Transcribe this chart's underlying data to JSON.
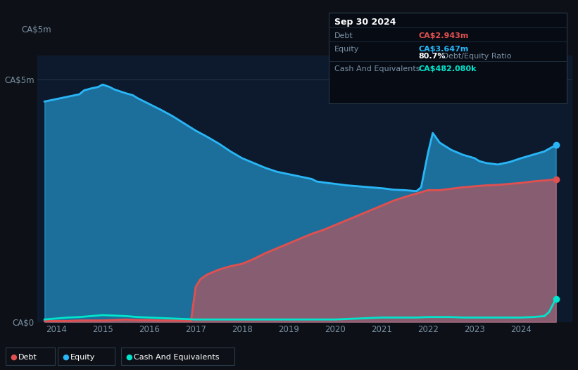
{
  "bg_color": "#0d1117",
  "plot_bg_color": "#0d1a2e",
  "title": "Sep 30 2024",
  "ylabel": "CA$5m",
  "y0_label": "CA$0",
  "debt_label": "CA$2.943m",
  "equity_label": "CA$3.647m",
  "ratio_label": "80.7%",
  "ratio_suffix": " Debt/Equity Ratio",
  "cash_label": "CA$482.080k",
  "debt_color": "#e05050",
  "equity_color": "#29b6f6",
  "cash_color": "#00e5cc",
  "ylim": [
    0,
    5.5
  ],
  "xlim_start": 2013.6,
  "xlim_end": 2025.1,
  "xticks": [
    2014,
    2015,
    2016,
    2017,
    2018,
    2019,
    2020,
    2021,
    2022,
    2023,
    2024
  ],
  "yticks_labels": [
    "CA$0",
    "CA$5m"
  ],
  "yticks_vals": [
    0,
    5
  ],
  "equity_x": [
    2013.75,
    2014.0,
    2014.25,
    2014.5,
    2014.6,
    2014.75,
    2014.9,
    2015.0,
    2015.15,
    2015.25,
    2015.5,
    2015.65,
    2015.75,
    2016.0,
    2016.25,
    2016.5,
    2016.75,
    2017.0,
    2017.25,
    2017.5,
    2017.75,
    2018.0,
    2018.25,
    2018.5,
    2018.75,
    2019.0,
    2019.25,
    2019.5,
    2019.6,
    2019.75,
    2020.0,
    2020.25,
    2020.5,
    2020.75,
    2021.0,
    2021.1,
    2021.25,
    2021.5,
    2021.75,
    2021.85,
    2022.0,
    2022.1,
    2022.25,
    2022.5,
    2022.75,
    2023.0,
    2023.1,
    2023.25,
    2023.5,
    2023.75,
    2024.0,
    2024.25,
    2024.5,
    2024.65,
    2024.75
  ],
  "equity_y": [
    4.55,
    4.6,
    4.65,
    4.7,
    4.78,
    4.82,
    4.85,
    4.9,
    4.85,
    4.8,
    4.72,
    4.68,
    4.62,
    4.5,
    4.38,
    4.25,
    4.1,
    3.95,
    3.82,
    3.68,
    3.52,
    3.38,
    3.28,
    3.18,
    3.1,
    3.05,
    3.0,
    2.95,
    2.9,
    2.88,
    2.85,
    2.82,
    2.8,
    2.78,
    2.76,
    2.75,
    2.73,
    2.72,
    2.7,
    2.78,
    3.5,
    3.9,
    3.7,
    3.55,
    3.45,
    3.38,
    3.32,
    3.28,
    3.25,
    3.3,
    3.38,
    3.45,
    3.52,
    3.6,
    3.647
  ],
  "debt_x": [
    2013.75,
    2014.0,
    2014.25,
    2014.5,
    2014.75,
    2015.0,
    2015.25,
    2015.5,
    2015.75,
    2016.0,
    2016.25,
    2016.5,
    2016.75,
    2016.9,
    2017.0,
    2017.1,
    2017.25,
    2017.5,
    2017.75,
    2018.0,
    2018.25,
    2018.5,
    2018.75,
    2019.0,
    2019.25,
    2019.5,
    2019.75,
    2020.0,
    2020.25,
    2020.5,
    2020.75,
    2021.0,
    2021.25,
    2021.5,
    2021.75,
    2022.0,
    2022.25,
    2022.5,
    2022.75,
    2023.0,
    2023.25,
    2023.5,
    2023.75,
    2024.0,
    2024.25,
    2024.5,
    2024.75
  ],
  "debt_y": [
    0.02,
    0.02,
    0.02,
    0.03,
    0.03,
    0.03,
    0.04,
    0.05,
    0.04,
    0.04,
    0.03,
    0.03,
    0.03,
    0.02,
    0.72,
    0.88,
    0.98,
    1.08,
    1.15,
    1.2,
    1.3,
    1.42,
    1.52,
    1.62,
    1.72,
    1.82,
    1.9,
    2.0,
    2.1,
    2.2,
    2.3,
    2.4,
    2.5,
    2.58,
    2.65,
    2.72,
    2.72,
    2.75,
    2.78,
    2.8,
    2.82,
    2.83,
    2.85,
    2.87,
    2.9,
    2.92,
    2.943
  ],
  "cash_x": [
    2013.75,
    2014.0,
    2014.25,
    2014.5,
    2014.75,
    2015.0,
    2015.25,
    2015.5,
    2015.75,
    2016.0,
    2016.25,
    2016.5,
    2016.75,
    2017.0,
    2017.25,
    2017.5,
    2017.75,
    2018.0,
    2018.25,
    2018.5,
    2018.75,
    2019.0,
    2019.25,
    2019.5,
    2019.75,
    2020.0,
    2020.25,
    2020.5,
    2020.75,
    2021.0,
    2021.25,
    2021.5,
    2021.75,
    2022.0,
    2022.25,
    2022.5,
    2022.75,
    2023.0,
    2023.25,
    2023.5,
    2023.75,
    2024.0,
    2024.25,
    2024.5,
    2024.6,
    2024.75
  ],
  "cash_y": [
    0.05,
    0.07,
    0.09,
    0.1,
    0.12,
    0.14,
    0.13,
    0.12,
    0.1,
    0.09,
    0.08,
    0.07,
    0.06,
    0.05,
    0.05,
    0.05,
    0.05,
    0.05,
    0.05,
    0.05,
    0.05,
    0.05,
    0.05,
    0.05,
    0.05,
    0.05,
    0.06,
    0.07,
    0.08,
    0.09,
    0.09,
    0.09,
    0.09,
    0.1,
    0.1,
    0.1,
    0.09,
    0.09,
    0.09,
    0.09,
    0.09,
    0.09,
    0.1,
    0.12,
    0.2,
    0.48
  ],
  "gridline_color": "#263545",
  "tooltip_bg": "#060b14",
  "text_color_muted": "#7a8fa3",
  "text_color_white": "#ffffff"
}
